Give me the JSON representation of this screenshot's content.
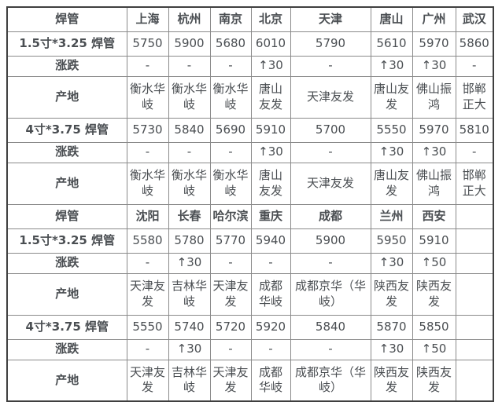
{
  "table_title": "焊管",
  "colors": {
    "section_title_red": "#ff0000",
    "city_blue": "#0a0af5",
    "up_red": "#fb3c3c",
    "dash_green": "#0b8a0b",
    "value_gray": "#4a4e52",
    "label_dark": "#333639",
    "inner_border": "#8a8a8a",
    "outer_border": "#3f3f3f"
  },
  "sections": [
    {
      "header": {
        "label": "焊管",
        "cities": [
          "上海",
          "杭州",
          "南京",
          "北京",
          "天津",
          "唐山",
          "广州",
          "武汉"
        ]
      },
      "rows": [
        {
          "label": "1.5寸*3.25 焊管",
          "type": "price",
          "values": [
            "5750",
            "5900",
            "5680",
            "6010",
            "5790",
            "5610",
            "5970",
            "5860"
          ]
        },
        {
          "label": "涨跌",
          "type": "change",
          "values": [
            "-",
            "-",
            "-",
            "↑30",
            "-",
            "↑30",
            "↑30",
            "-"
          ]
        },
        {
          "label": "产地",
          "type": "origin",
          "values": [
            "衡水华岐",
            "衡水华岐",
            "衡水华岐",
            "唐山友发",
            "天津友发",
            "唐山友发",
            "佛山振鸿",
            "邯郸正大"
          ]
        },
        {
          "label": "4寸*3.75 焊管",
          "type": "price",
          "values": [
            "5730",
            "5840",
            "5690",
            "5910",
            "5700",
            "5550",
            "5970",
            "5810"
          ]
        },
        {
          "label": "涨跌",
          "type": "change",
          "values": [
            "-",
            "-",
            "-",
            "↑30",
            "-",
            "↑30",
            "↑30",
            "-"
          ]
        },
        {
          "label": "产地",
          "type": "origin",
          "values": [
            "衡水华岐",
            "衡水华岐",
            "衡水华岐",
            "唐山友发",
            "天津友发",
            "唐山友发",
            "佛山振鸿",
            "邯郸正大"
          ]
        }
      ]
    },
    {
      "header": {
        "label": "焊管",
        "cities": [
          "沈阳",
          "长春",
          "哈尔滨",
          "重庆",
          "成都",
          "兰州",
          "西安",
          ""
        ]
      },
      "rows": [
        {
          "label": "1.5寸*3.25 焊管",
          "type": "price",
          "values": [
            "5580",
            "5780",
            "5770",
            "5940",
            "5900",
            "5950",
            "5910",
            ""
          ]
        },
        {
          "label": "涨跌",
          "type": "change",
          "values": [
            "-",
            "↑30",
            "-",
            "-",
            "-",
            "↑30",
            "↑50",
            ""
          ]
        },
        {
          "label": "产地",
          "type": "origin",
          "values": [
            "天津友发",
            "吉林华岐",
            "天津友发",
            "成都华岐",
            "成都京华（华岐）",
            "陕西友发",
            "陕西友发",
            ""
          ]
        },
        {
          "label": "4寸*3.75 焊管",
          "type": "price",
          "values": [
            "5550",
            "5740",
            "5720",
            "5920",
            "5840",
            "5870",
            "5850",
            ""
          ]
        },
        {
          "label": "涨跌",
          "type": "change",
          "values": [
            "-",
            "↑30",
            "-",
            "-",
            "-",
            "↑30",
            "↑50",
            ""
          ]
        },
        {
          "label": "产地",
          "type": "origin",
          "values": [
            "天津友发",
            "吉林华岐",
            "天津友发",
            "成都华岐",
            "成都京华（华岐）",
            "陕西友发",
            "陕西友发",
            ""
          ]
        }
      ]
    }
  ]
}
